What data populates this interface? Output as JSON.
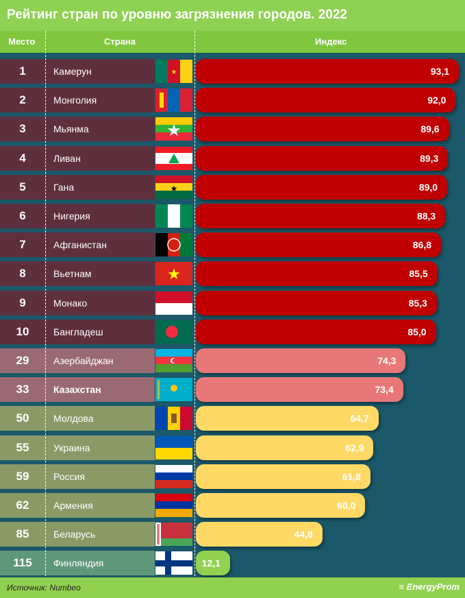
{
  "title": "Рейтинг стран по уровню загрязнения городов. 2022",
  "headers": {
    "rank": "Место",
    "country": "Страна",
    "index": "Индекс"
  },
  "footer": {
    "source": "Источник: Numbeo",
    "logo": "EnergyProm"
  },
  "colors": {
    "top10_row": "#5e2f3c",
    "top10_bar": "#c00000",
    "mid_row": "#9a6a73",
    "mid_bar": "#e87878",
    "cis_row": "#8a9a66",
    "cis_bar": "#ffd966",
    "low_row": "#5f9878",
    "low_bar": "#92d050"
  },
  "chart_data": {
    "type": "bar",
    "title": "Рейтинг стран по уровню загрязнения городов. 2022",
    "ylabel": "Индекс",
    "xlim": [
      0,
      93.1
    ],
    "rows": [
      {
        "rank": "1",
        "country": "Камерун",
        "value": "93,1",
        "v": 93.1,
        "flag": "flag-cameroon",
        "group": "top10"
      },
      {
        "rank": "2",
        "country": "Монголия",
        "value": "92,0",
        "v": 92.0,
        "flag": "flag-mongolia",
        "group": "top10"
      },
      {
        "rank": "3",
        "country": "Мьянма",
        "value": "89,6",
        "v": 89.6,
        "flag": "flag-myanmar",
        "group": "top10"
      },
      {
        "rank": "4",
        "country": "Ливан",
        "value": "89,3",
        "v": 89.3,
        "flag": "flag-lebanon",
        "group": "top10"
      },
      {
        "rank": "5",
        "country": "Гана",
        "value": "89,0",
        "v": 89.0,
        "flag": "flag-ghana",
        "group": "top10"
      },
      {
        "rank": "6",
        "country": "Нигерия",
        "value": "88,3",
        "v": 88.3,
        "flag": "flag-nigeria",
        "group": "top10"
      },
      {
        "rank": "7",
        "country": "Афганистан",
        "value": "86,8",
        "v": 86.8,
        "flag": "flag-afghanistan",
        "group": "top10"
      },
      {
        "rank": "8",
        "country": "Вьетнам",
        "value": "85,5",
        "v": 85.5,
        "flag": "flag-vietnam",
        "group": "top10"
      },
      {
        "rank": "9",
        "country": "Монако",
        "value": "85,3",
        "v": 85.3,
        "flag": "flag-monaco",
        "group": "top10"
      },
      {
        "rank": "10",
        "country": "Бангладеш",
        "value": "85,0",
        "v": 85.0,
        "flag": "flag-bangladesh",
        "group": "top10"
      },
      {
        "rank": "29",
        "country": "Азербайджан",
        "value": "74,3",
        "v": 74.3,
        "flag": "flag-azerbaijan",
        "group": "mid"
      },
      {
        "rank": "33",
        "country": "Казахстан",
        "value": "73,4",
        "v": 73.4,
        "flag": "flag-kazakhstan",
        "group": "mid",
        "bold": true
      },
      {
        "rank": "50",
        "country": "Молдова",
        "value": "64,7",
        "v": 64.7,
        "flag": "flag-moldova",
        "group": "cis"
      },
      {
        "rank": "55",
        "country": "Украина",
        "value": "62,9",
        "v": 62.9,
        "flag": "flag-ukraine",
        "group": "cis"
      },
      {
        "rank": "59",
        "country": "Россия",
        "value": "61,8",
        "v": 61.8,
        "flag": "flag-russia",
        "group": "cis"
      },
      {
        "rank": "62",
        "country": "Армения",
        "value": "60,0",
        "v": 60.0,
        "flag": "flag-armenia",
        "group": "cis"
      },
      {
        "rank": "85",
        "country": "Беларусь",
        "value": "44,8",
        "v": 44.8,
        "flag": "flag-belarus",
        "group": "cis"
      },
      {
        "rank": "115",
        "country": "Финляндия",
        "value": "12,1",
        "v": 12.1,
        "flag": "flag-finland",
        "group": "low"
      }
    ]
  }
}
